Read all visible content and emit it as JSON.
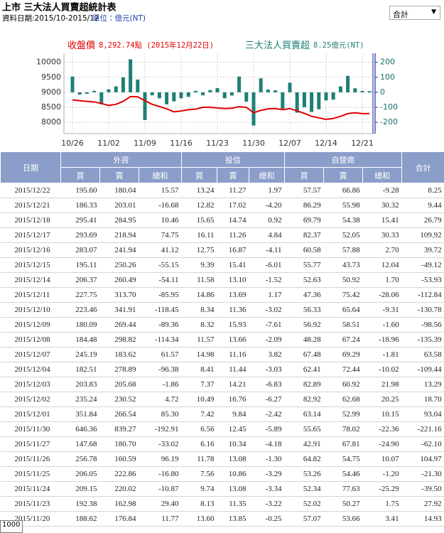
{
  "header": {
    "title": "上市 三大法人買賣超統計表",
    "date_range": "資料日期:2015/10-2015/12",
    "unit": "單位：億元(NT)",
    "dropdown": "合計"
  },
  "chart_data": {
    "type": "combo",
    "categories": [
      "10/26",
      null,
      null,
      null,
      null,
      "11/02",
      null,
      null,
      null,
      null,
      "11/09",
      null,
      null,
      null,
      null,
      "11/16",
      null,
      null,
      null,
      null,
      "11/23",
      null,
      null,
      null,
      null,
      "11/30",
      null,
      null,
      null,
      null,
      "12/07",
      null,
      null,
      null,
      null,
      "12/14",
      null,
      null,
      null,
      null,
      "12/21",
      null
    ],
    "series": [
      {
        "name": "收盤價",
        "latest_label": "8,292.74點 (2015年12月22日)",
        "type": "line",
        "color": "#e00000",
        "values": [
          8750,
          8720,
          8700,
          8680,
          8630,
          8560,
          8600,
          8700,
          8860,
          8850,
          8720,
          8600,
          8530,
          8450,
          8350,
          8380,
          8420,
          8440,
          8500,
          8500,
          8480,
          8460,
          8470,
          8520,
          8500,
          8320,
          8400,
          8450,
          8460,
          8420,
          8460,
          8380,
          8300,
          8200,
          8150,
          8100,
          8130,
          8200,
          8290,
          8320,
          8290,
          8292.74
        ]
      },
      {
        "name": "三大法人買賣超",
        "latest_label": "8.25億元(NT)",
        "type": "bar",
        "axis": "y2",
        "color": "#1f7f78",
        "values": [
          105,
          -15,
          -10,
          10,
          -80,
          20,
          40,
          100,
          220,
          85,
          -185,
          -20,
          -40,
          -80,
          -60,
          -40,
          -30,
          10,
          -20,
          14.93,
          27.92,
          -39.5,
          -21.3,
          104.97,
          -62.1,
          -221.16,
          93.04,
          18.7,
          13.29,
          -109.44,
          63.58,
          -135.39,
          -98.56,
          -130.78,
          -112.84,
          -53.93,
          -49.12,
          39.72,
          109.92,
          26.79,
          9.44,
          8.25
        ]
      }
    ],
    "ylim": [
      7625,
      10300
    ],
    "yticks": [
      8000,
      8500,
      9000,
      9500,
      10000
    ],
    "y2lim": [
      -275,
      260
    ],
    "y2ticks": [
      -200,
      -100,
      0,
      100,
      200
    ],
    "grid": true
  },
  "table": {
    "group_headers": [
      "日期",
      "外資",
      "投信",
      "自營商",
      "合計"
    ],
    "sub_headers": [
      "買",
      "賣",
      "總和",
      "買",
      "賣",
      "總和",
      "買",
      "賣",
      "總和"
    ],
    "rows": [
      [
        "2015/12/22",
        "195.60",
        "180.04",
        "15.57",
        "13.24",
        "11.27",
        "1.97",
        "57.57",
        "66.86",
        "-9.28",
        "8.25"
      ],
      [
        "2015/12/21",
        "186.33",
        "203.01",
        "-16.68",
        "12.82",
        "17.02",
        "-4.20",
        "86.29",
        "55.98",
        "30.32",
        "9.44"
      ],
      [
        "2015/12/18",
        "295.41",
        "284.95",
        "10.46",
        "15.65",
        "14.74",
        "0.92",
        "69.79",
        "54.38",
        "15.41",
        "26.79"
      ],
      [
        "2015/12/17",
        "293.69",
        "218.94",
        "74.75",
        "16.11",
        "11.26",
        "4.84",
        "82.37",
        "52.05",
        "30.33",
        "109.92"
      ],
      [
        "2015/12/16",
        "283.07",
        "241.94",
        "41.12",
        "12.75",
        "16.87",
        "-4.11",
        "60.58",
        "57.88",
        "2.70",
        "39.72"
      ],
      [
        "2015/12/15",
        "195.11",
        "250.26",
        "-55.15",
        "9.39",
        "15.41",
        "-6.01",
        "55.77",
        "43.73",
        "12.04",
        "-49.12"
      ],
      [
        "2015/12/14",
        "206.37",
        "260.49",
        "-54.11",
        "11.58",
        "13.10",
        "-1.52",
        "52.63",
        "50.92",
        "1.70",
        "-53.93"
      ],
      [
        "2015/12/11",
        "227.75",
        "313.70",
        "-85.95",
        "14.86",
        "13.69",
        "1.17",
        "47.36",
        "75.42",
        "-28.06",
        "-112.84"
      ],
      [
        "2015/12/10",
        "223.46",
        "341.91",
        "-118.45",
        "8.34",
        "11.36",
        "-3.02",
        "56.33",
        "65.64",
        "-9.31",
        "-130.78"
      ],
      [
        "2015/12/09",
        "180.09",
        "269.44",
        "-89.36",
        "8.32",
        "15.93",
        "-7.61",
        "56.92",
        "58.51",
        "-1.60",
        "-98.56"
      ],
      [
        "2015/12/08",
        "184.48",
        "298.82",
        "-114.34",
        "11.57",
        "13.66",
        "-2.09",
        "48.28",
        "67.24",
        "-18.96",
        "-135.39"
      ],
      [
        "2015/12/07",
        "245.19",
        "183.62",
        "61.57",
        "14.98",
        "11.16",
        "3.82",
        "67.48",
        "69.29",
        "-1.81",
        "63.58"
      ],
      [
        "2015/12/04",
        "182.51",
        "278.89",
        "-96.38",
        "8.41",
        "11.44",
        "-3.03",
        "62.41",
        "72.44",
        "-10.02",
        "-109.44"
      ],
      [
        "2015/12/03",
        "203.83",
        "205.68",
        "-1.86",
        "7.37",
        "14.21",
        "-6.83",
        "82.89",
        "60.92",
        "21.98",
        "13.29"
      ],
      [
        "2015/12/02",
        "235.24",
        "230.52",
        "4.72",
        "10.49",
        "16.76",
        "-6.27",
        "82.92",
        "62.68",
        "20.25",
        "18.70"
      ],
      [
        "2015/12/01",
        "351.84",
        "266.54",
        "85.30",
        "7.42",
        "9.84",
        "-2.42",
        "63.14",
        "52.99",
        "10.15",
        "93.04"
      ],
      [
        "2015/11/30",
        "646.36",
        "839.27",
        "-192.91",
        "6.56",
        "12.45",
        "-5.89",
        "55.65",
        "78.02",
        "-22.36",
        "-221.16"
      ],
      [
        "2015/11/27",
        "147.68",
        "180.70",
        "-33.02",
        "6.16",
        "10.34",
        "-4.18",
        "42.91",
        "67.81",
        "-24.90",
        "-62.10"
      ],
      [
        "2015/11/26",
        "256.78",
        "160.59",
        "96.19",
        "11.78",
        "13.08",
        "-1.30",
        "64.82",
        "54.75",
        "10.07",
        "104.97"
      ],
      [
        "2015/11/25",
        "206.05",
        "222.86",
        "-16.80",
        "7.56",
        "10.86",
        "-3.29",
        "53.26",
        "54.46",
        "-1.20",
        "-21.30"
      ],
      [
        "2015/11/24",
        "209.15",
        "220.02",
        "-10.87",
        "9.74",
        "13.08",
        "-3.34",
        "52.34",
        "77.63",
        "-25.29",
        "-39.50"
      ],
      [
        "2015/11/23",
        "192.38",
        "162.98",
        "29.40",
        "8.13",
        "11.35",
        "-3.22",
        "52.02",
        "50.27",
        "1.75",
        "27.92"
      ],
      [
        "2015/11/20",
        "188.62",
        "176.84",
        "11.77",
        "13.60",
        "13.85",
        "-0.25",
        "57.07",
        "53.66",
        "3.41",
        "14.93"
      ]
    ]
  },
  "overlay_text": "1000"
}
